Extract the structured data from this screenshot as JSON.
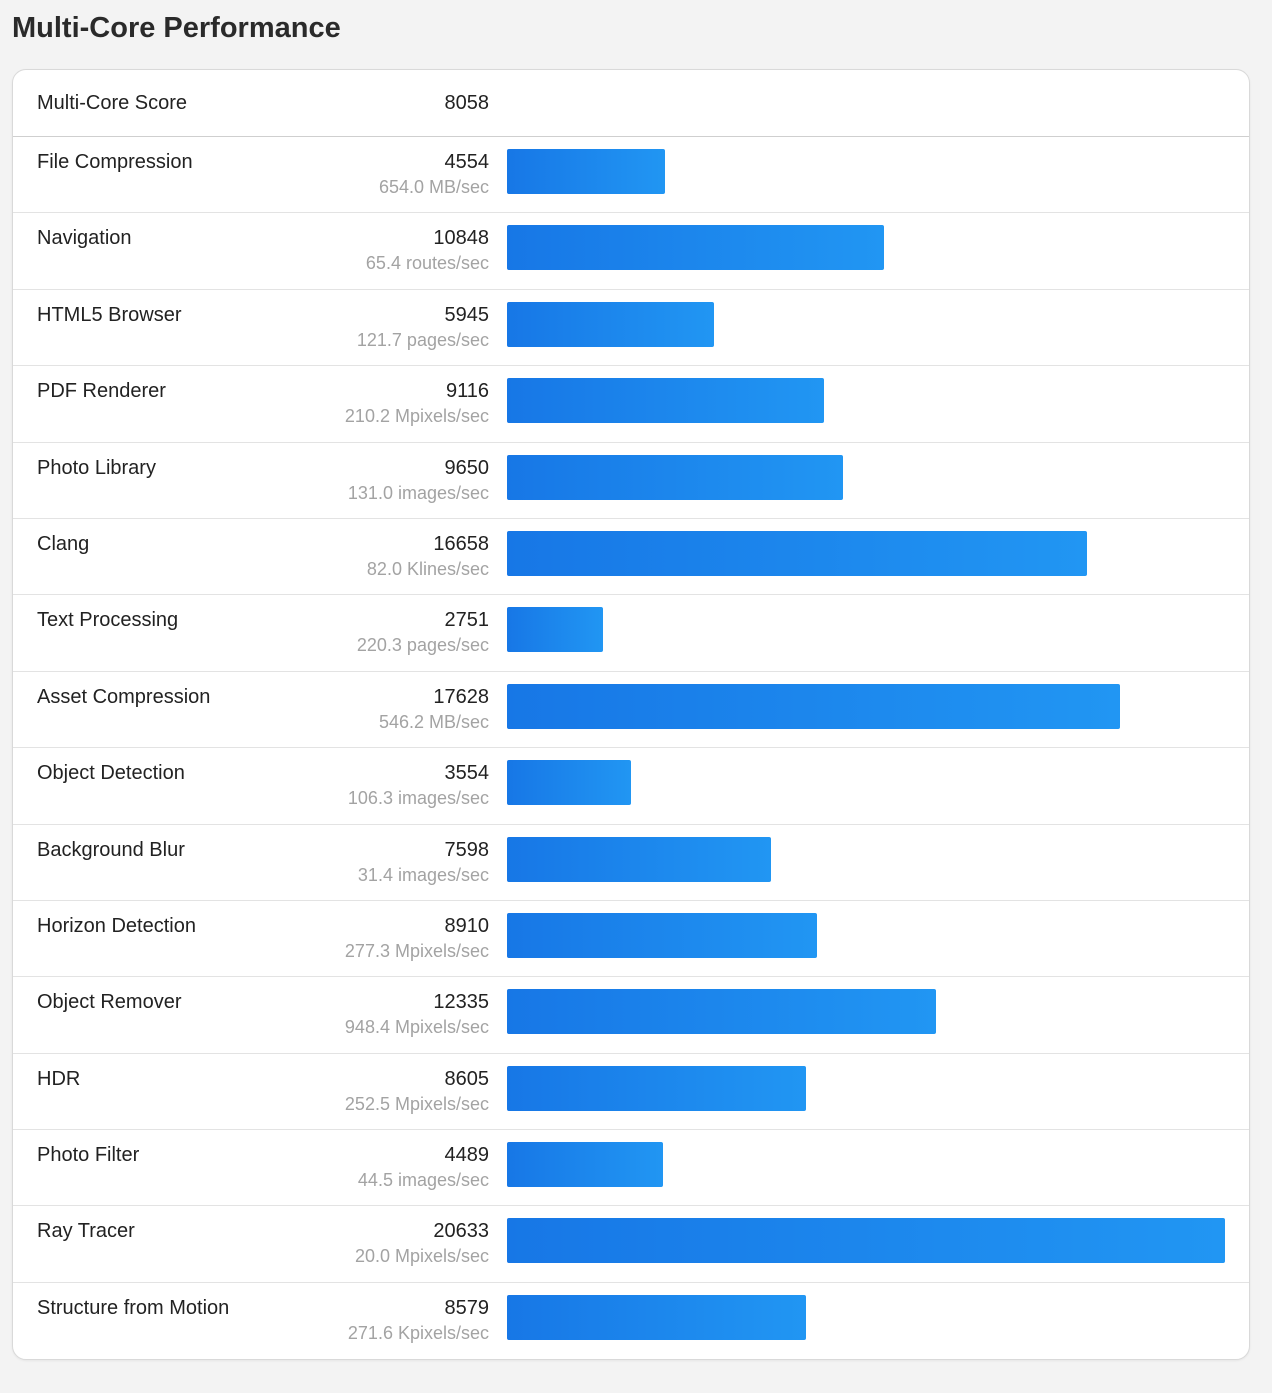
{
  "header": {
    "title": "Multi-Core Performance"
  },
  "score": {
    "label": "Multi-Core Score",
    "value": "8058"
  },
  "chart_data": {
    "type": "bar",
    "orientation": "horizontal",
    "categories": [
      "File Compression",
      "Navigation",
      "HTML5 Browser",
      "PDF Renderer",
      "Photo Library",
      "Clang",
      "Text Processing",
      "Asset Compression",
      "Object Detection",
      "Background Blur",
      "Horizon Detection",
      "Object Remover",
      "HDR",
      "Photo Filter",
      "Ray Tracer",
      "Structure from Motion"
    ],
    "values": [
      4554,
      10848,
      5945,
      9116,
      9650,
      16658,
      2751,
      17628,
      3554,
      7598,
      8910,
      12335,
      8605,
      4489,
      20633,
      8579
    ],
    "rates": [
      "654.0 MB/sec",
      "65.4 routes/sec",
      "121.7 pages/sec",
      "210.2 Mpixels/sec",
      "131.0 images/sec",
      "82.0 Klines/sec",
      "220.3 pages/sec",
      "546.2 MB/sec",
      "106.3 images/sec",
      "31.4 images/sec",
      "277.3 Mpixels/sec",
      "948.4 Mpixels/sec",
      "252.5 Mpixels/sec",
      "44.5 images/sec",
      "20.0 Mpixels/sec",
      "271.6 Kpixels/sec"
    ],
    "xlim": [
      0,
      20633
    ],
    "grid": false,
    "legend": "none",
    "colors": {
      "bar_start": "#1777e6",
      "bar_end": "#2196f3"
    }
  }
}
